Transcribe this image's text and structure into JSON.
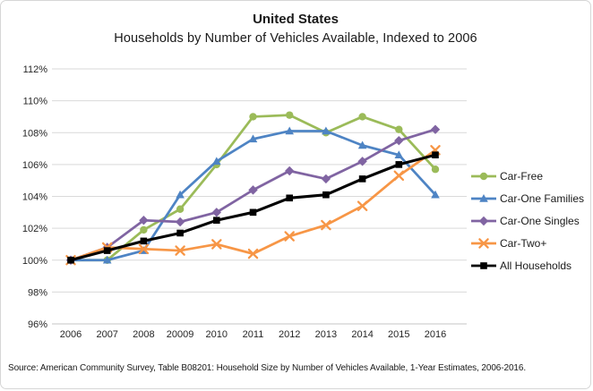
{
  "source_note": "Source: American Community Survey,  Table B08201: Household Size by Number of Vehicles Available, 1-Year Estimates, 2006-2016.",
  "colors": {
    "grid": "#d9d9d9",
    "axis_line": "#c6c6c6",
    "tick_text": "#262626"
  },
  "chart_data": {
    "type": "line",
    "title": "United States",
    "subtitle": "Households by Number of Vehicles Available, Indexed to 2006",
    "categories": [
      "2006",
      "2007",
      "2008",
      "20009",
      "2010",
      "2011",
      "2012",
      "2013",
      "2014",
      "2015",
      "2016"
    ],
    "series": [
      {
        "name": "Car-Free",
        "color": "#9bbb59",
        "marker": "circle",
        "values": [
          100,
          100,
          101.9,
          103.2,
          106.0,
          109.0,
          109.1,
          108.0,
          109.0,
          108.2,
          105.7
        ]
      },
      {
        "name": "Car-One Families",
        "color": "#4e84c4",
        "marker": "triangle",
        "values": [
          100,
          100,
          100.6,
          104.1,
          106.2,
          107.6,
          108.1,
          108.1,
          107.2,
          106.6,
          104.1
        ]
      },
      {
        "name": "Car-One Singles",
        "color": "#8064a2",
        "marker": "diamond",
        "values": [
          100,
          100.8,
          102.5,
          102.4,
          103.0,
          104.4,
          105.6,
          105.1,
          106.2,
          107.5,
          108.2
        ]
      },
      {
        "name": "Car-Two+",
        "color": "#f79646",
        "marker": "x",
        "values": [
          100,
          100.8,
          100.7,
          100.6,
          101.0,
          100.4,
          101.5,
          102.2,
          103.4,
          105.3,
          106.9
        ]
      },
      {
        "name": "All Households",
        "color": "#000000",
        "marker": "square",
        "values": [
          100,
          100.6,
          101.2,
          101.7,
          102.5,
          103.0,
          103.9,
          104.1,
          105.1,
          106.0,
          106.6
        ]
      }
    ],
    "ylim": [
      96,
      112
    ],
    "y_tick_step": 2,
    "y_tick_suffix": "%",
    "grid": true,
    "legend_position": "right"
  }
}
